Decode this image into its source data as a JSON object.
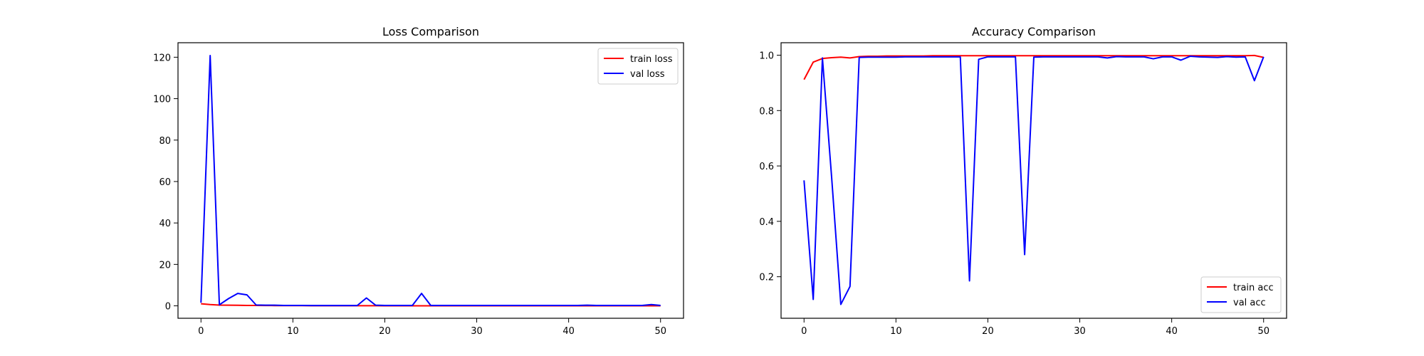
{
  "chart_data": [
    {
      "type": "line",
      "title": "Loss Comparison",
      "xlabel": "",
      "ylabel": "",
      "xlim": [
        -2.5,
        52.5
      ],
      "ylim": [
        -6.0,
        127.0
      ],
      "xticks": [
        0,
        10,
        20,
        30,
        40,
        50
      ],
      "yticks": [
        0,
        20,
        40,
        60,
        80,
        100,
        120
      ],
      "tick_labels_x": [
        "0",
        "10",
        "20",
        "30",
        "40",
        "50"
      ],
      "tick_labels_y": [
        "0",
        "20",
        "40",
        "60",
        "80",
        "100",
        "120"
      ],
      "grid": false,
      "legend_position": "upper right",
      "x": [
        0,
        1,
        2,
        3,
        4,
        5,
        6,
        7,
        8,
        9,
        10,
        11,
        12,
        13,
        14,
        15,
        16,
        17,
        18,
        19,
        20,
        21,
        22,
        23,
        24,
        25,
        26,
        27,
        28,
        29,
        30,
        31,
        32,
        33,
        34,
        35,
        36,
        37,
        38,
        39,
        40,
        41,
        42,
        43,
        44,
        45,
        46,
        47,
        48,
        49,
        50
      ],
      "series": [
        {
          "name": "train loss",
          "color": "#ff0000",
          "values": [
            1.0,
            0.6,
            0.35,
            0.3,
            0.25,
            0.2,
            0.18,
            0.15,
            0.12,
            0.1,
            0.1,
            0.08,
            0.07,
            0.06,
            0.05,
            0.05,
            0.04,
            0.04,
            0.05,
            0.04,
            0.03,
            0.03,
            0.03,
            0.02,
            0.02,
            0.02,
            0.02,
            0.02,
            0.02,
            0.02,
            0.02,
            0.02,
            0.02,
            0.02,
            0.02,
            0.02,
            0.02,
            0.02,
            0.03,
            0.02,
            0.02,
            0.02,
            0.02,
            0.02,
            0.02,
            0.02,
            0.02,
            0.02,
            0.02,
            0.02,
            0.02
          ]
        },
        {
          "name": "val loss",
          "color": "#0000ff",
          "values": [
            1.5,
            120.8,
            0.5,
            3.5,
            6.0,
            5.3,
            0.4,
            0.3,
            0.3,
            0.2,
            0.2,
            0.2,
            0.15,
            0.15,
            0.15,
            0.15,
            0.15,
            0.15,
            3.8,
            0.3,
            0.2,
            0.2,
            0.2,
            0.2,
            6.0,
            0.2,
            0.2,
            0.2,
            0.2,
            0.2,
            0.2,
            0.2,
            0.2,
            0.2,
            0.2,
            0.2,
            0.2,
            0.2,
            0.2,
            0.2,
            0.2,
            0.2,
            0.3,
            0.2,
            0.2,
            0.2,
            0.2,
            0.2,
            0.2,
            0.6,
            0.2
          ]
        }
      ]
    },
    {
      "type": "line",
      "title": "Accuracy Comparison",
      "xlabel": "",
      "ylabel": "",
      "xlim": [
        -2.5,
        52.5
      ],
      "ylim": [
        0.05,
        1.045
      ],
      "xticks": [
        0,
        10,
        20,
        30,
        40,
        50
      ],
      "yticks": [
        0.2,
        0.4,
        0.6,
        0.8,
        1.0
      ],
      "tick_labels_x": [
        "0",
        "10",
        "20",
        "30",
        "40",
        "50"
      ],
      "tick_labels_y": [
        "0.2",
        "0.4",
        "0.6",
        "0.8",
        "1.0"
      ],
      "grid": false,
      "legend_position": "lower right",
      "x": [
        0,
        1,
        2,
        3,
        4,
        5,
        6,
        7,
        8,
        9,
        10,
        11,
        12,
        13,
        14,
        15,
        16,
        17,
        18,
        19,
        20,
        21,
        22,
        23,
        24,
        25,
        26,
        27,
        28,
        29,
        30,
        31,
        32,
        33,
        34,
        35,
        36,
        37,
        38,
        39,
        40,
        41,
        42,
        43,
        44,
        45,
        46,
        47,
        48,
        49,
        50
      ],
      "series": [
        {
          "name": "train acc",
          "color": "#ff0000",
          "values": [
            0.912,
            0.975,
            0.988,
            0.991,
            0.993,
            0.99,
            0.995,
            0.996,
            0.996,
            0.997,
            0.997,
            0.997,
            0.997,
            0.997,
            0.998,
            0.998,
            0.998,
            0.998,
            0.998,
            0.998,
            0.998,
            0.998,
            0.998,
            0.998,
            0.998,
            0.998,
            0.998,
            0.998,
            0.998,
            0.998,
            0.998,
            0.998,
            0.998,
            0.998,
            0.998,
            0.998,
            0.998,
            0.998,
            0.998,
            0.998,
            0.998,
            0.998,
            0.998,
            0.998,
            0.998,
            0.998,
            0.998,
            0.998,
            0.998,
            0.999,
            0.992
          ]
        },
        {
          "name": "val acc",
          "color": "#0000ff",
          "values": [
            0.548,
            0.118,
            0.99,
            0.56,
            0.1,
            0.165,
            0.992,
            0.993,
            0.993,
            0.993,
            0.993,
            0.994,
            0.994,
            0.994,
            0.994,
            0.994,
            0.994,
            0.994,
            0.185,
            0.985,
            0.994,
            0.994,
            0.994,
            0.994,
            0.28,
            0.993,
            0.994,
            0.994,
            0.994,
            0.994,
            0.994,
            0.994,
            0.994,
            0.99,
            0.995,
            0.994,
            0.994,
            0.994,
            0.987,
            0.994,
            0.994,
            0.982,
            0.996,
            0.994,
            0.993,
            0.992,
            0.995,
            0.993,
            0.994,
            0.908,
            0.994
          ]
        }
      ]
    }
  ]
}
